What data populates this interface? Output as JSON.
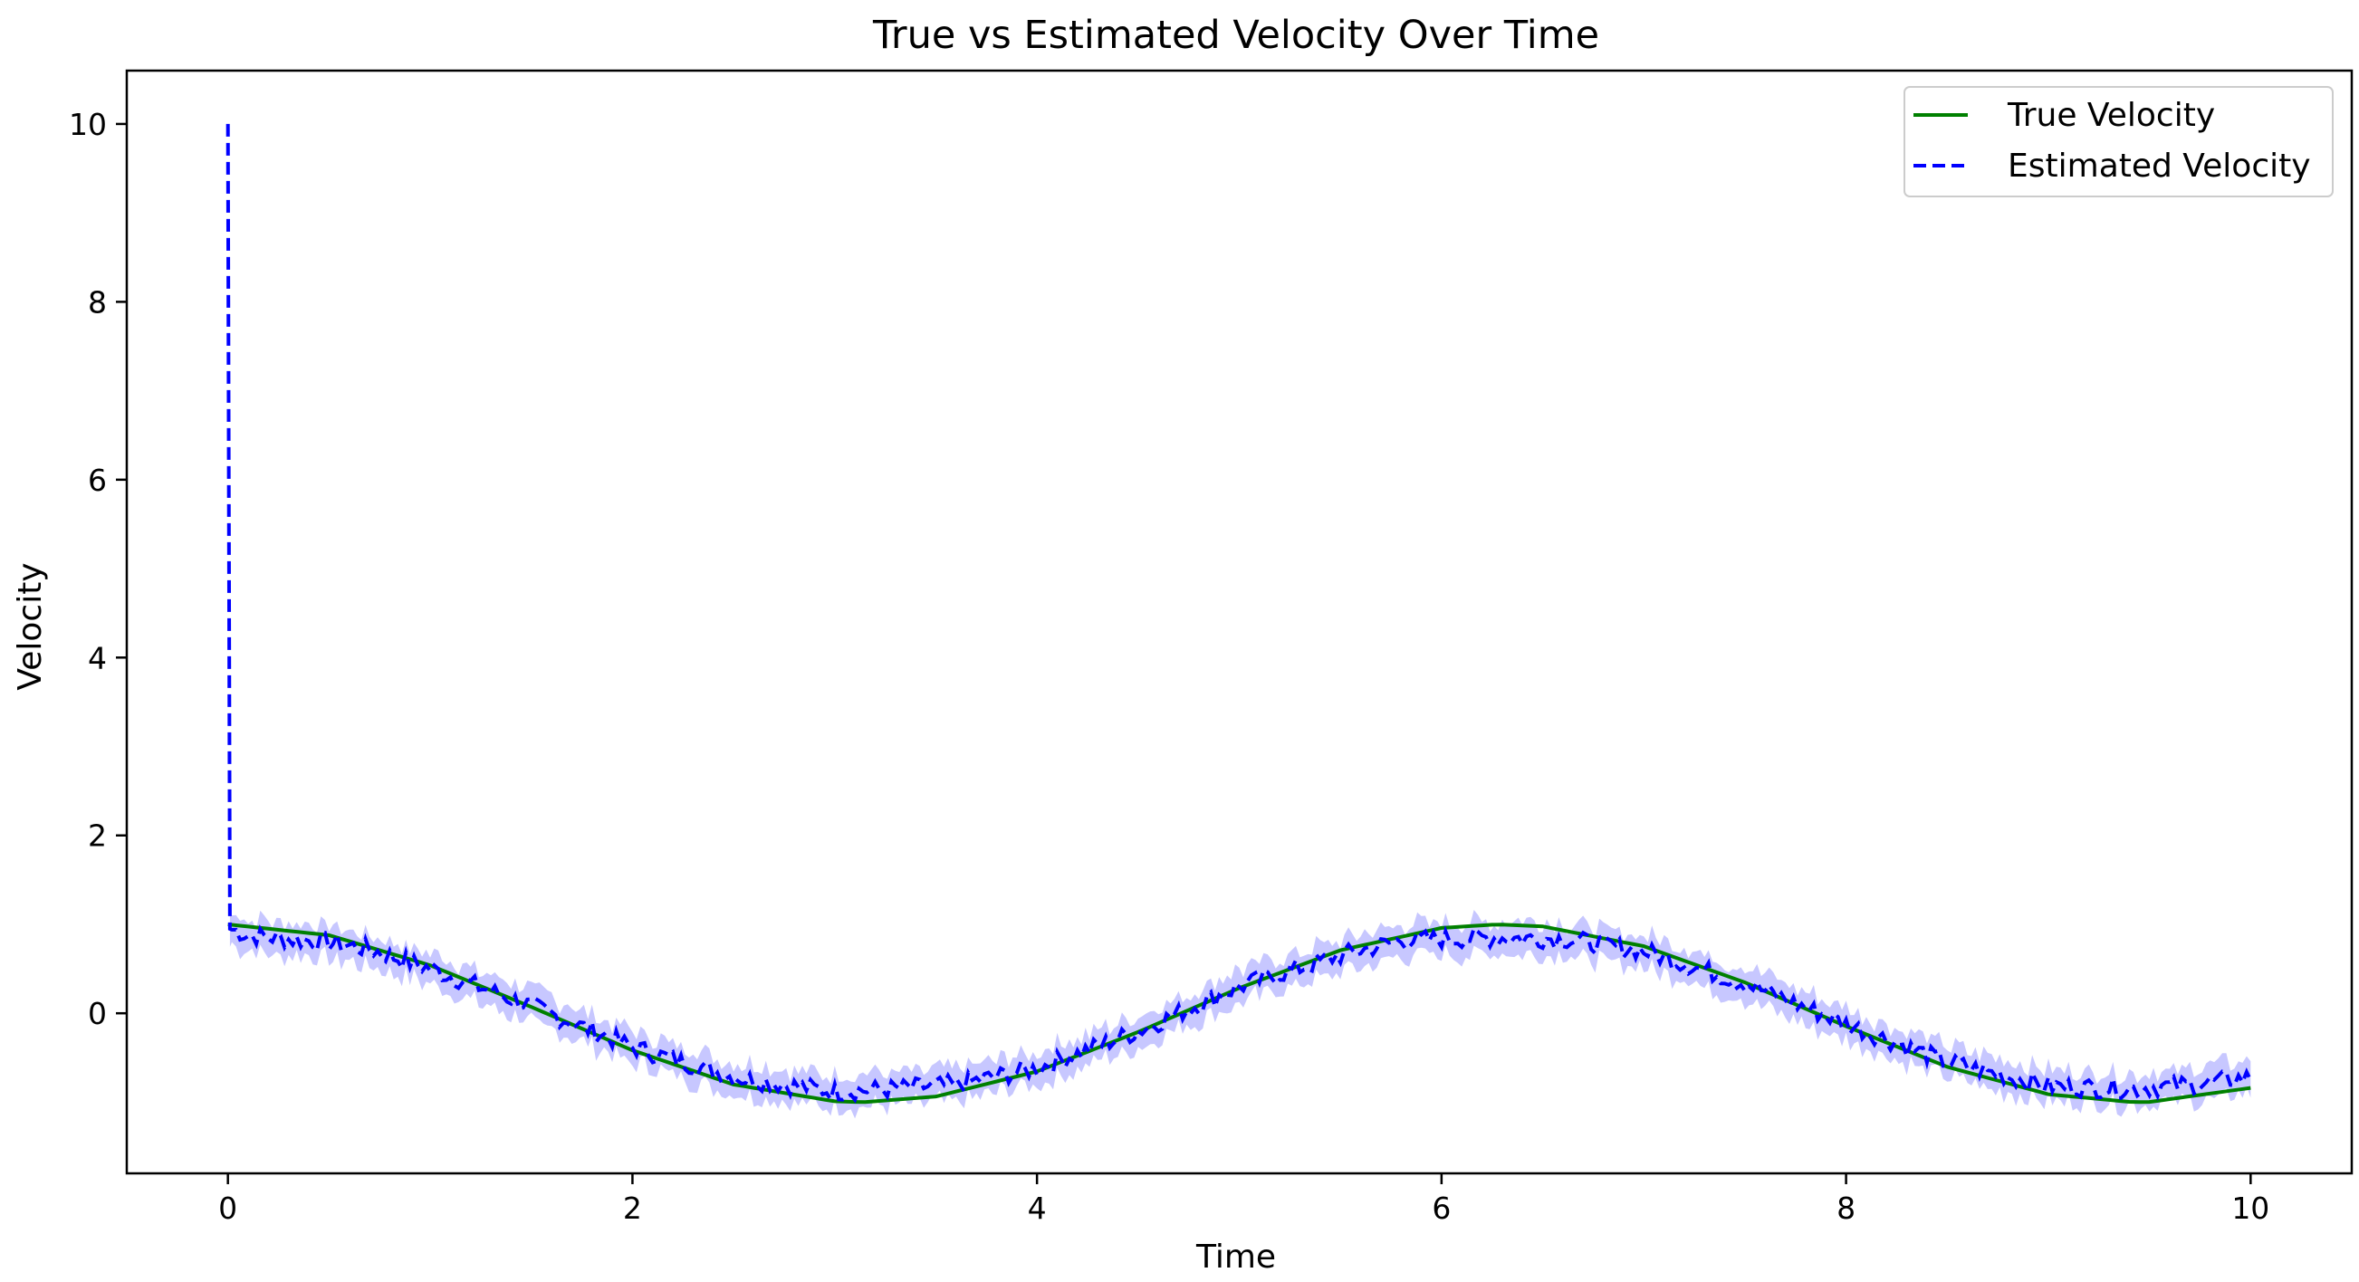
{
  "chart_data": {
    "type": "line",
    "title": "True vs Estimated Velocity Over Time",
    "xlabel": "Time",
    "ylabel": "Velocity",
    "xlim": [
      -0.5,
      10.5
    ],
    "ylim": [
      -1.8,
      10.6
    ],
    "xticks": [
      0,
      2,
      4,
      6,
      8,
      10
    ],
    "yticks": [
      0,
      2,
      4,
      6,
      8,
      10
    ],
    "grid": false,
    "legend_position": "top-right",
    "series": [
      {
        "name": "True Velocity",
        "style": "solid",
        "color": "#008000",
        "x": [
          0,
          0.5,
          1,
          1.5,
          2,
          2.5,
          3,
          3.14,
          3.5,
          4,
          4.5,
          5,
          5.5,
          6,
          6.28,
          6.5,
          7,
          7.5,
          8,
          8.5,
          9,
          9.42,
          9.5,
          10
        ],
        "y": [
          1.0,
          0.878,
          0.54,
          0.071,
          -0.416,
          -0.801,
          -0.99,
          -1.0,
          -0.936,
          -0.654,
          -0.211,
          0.284,
          0.709,
          0.96,
          1.0,
          0.977,
          0.754,
          0.347,
          -0.146,
          -0.602,
          -0.911,
          -1.0,
          -0.997,
          -0.839
        ]
      },
      {
        "name": "Estimated Velocity",
        "style": "dashed",
        "color": "#0000ff",
        "x": [
          0,
          0.01,
          0.1,
          0.3,
          0.5,
          0.7,
          1.0,
          1.5,
          2.0,
          2.5,
          3.0,
          3.3,
          3.6,
          4.0,
          4.5,
          5.0,
          5.5,
          5.8,
          6.2,
          6.6,
          7.0,
          7.5,
          8.0,
          8.5,
          9.0,
          9.4,
          9.7,
          10.0
        ],
        "y": [
          10.0,
          0.95,
          0.88,
          0.83,
          0.8,
          0.72,
          0.5,
          0.08,
          -0.38,
          -0.72,
          -0.88,
          -0.85,
          -0.8,
          -0.62,
          -0.2,
          0.3,
          0.65,
          0.82,
          0.85,
          0.84,
          0.7,
          0.34,
          -0.12,
          -0.55,
          -0.82,
          -0.85,
          -0.8,
          -0.72
        ]
      }
    ],
    "band": {
      "color": "#9999ff",
      "half_width": 0.18
    },
    "legend": [
      "True Velocity",
      "Estimated Velocity"
    ]
  }
}
